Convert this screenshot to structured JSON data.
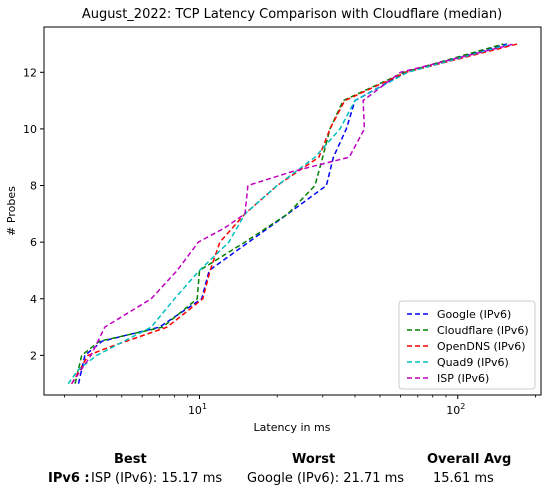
{
  "chart_data": {
    "type": "line",
    "title": "August_2022: TCP Latency Comparison with Cloudflare (median)",
    "xlabel": "Latency in ms",
    "ylabel": "# Probes",
    "xscale": "log",
    "xlim": [
      2.5,
      210
    ],
    "ylim": [
      0.6,
      13.6
    ],
    "xticks": [
      {
        "value": 10,
        "label": "10^1"
      },
      {
        "value": 100,
        "label": "10^2"
      }
    ],
    "yticks": [
      2,
      4,
      6,
      8,
      10,
      12
    ],
    "grid": false,
    "legend_position": "lower-right",
    "series": [
      {
        "name": "Google (IPv6)",
        "color": "#0000ff",
        "x": [
          3.4,
          3.6,
          4.2,
          7.0,
          10.2,
          10.9,
          15.5,
          22.0,
          31.0,
          33.0,
          37.0,
          40.0,
          63.0,
          155.0
        ],
        "y": [
          1,
          2,
          2.5,
          3,
          4,
          5,
          6,
          7,
          8,
          9,
          10,
          11,
          12,
          13
        ]
      },
      {
        "name": "Cloudflare (IPv6)",
        "color": "#008000",
        "x": [
          3.3,
          3.5,
          4.1,
          7.2,
          9.8,
          10.0,
          15.0,
          22.0,
          28.0,
          30.0,
          32.0,
          36.0,
          62.0,
          150.0
        ],
        "y": [
          1,
          2,
          2.5,
          3,
          4,
          5,
          6,
          7,
          8,
          9,
          10,
          11,
          12,
          13
        ]
      },
      {
        "name": "OpenDNS (IPv6)",
        "color": "#ff0000",
        "x": [
          3.2,
          3.7,
          4.5,
          7.5,
          10.3,
          11.0,
          12.0,
          15.0,
          20.0,
          29.0,
          32.0,
          36.5,
          63.0,
          170.0
        ],
        "y": [
          1,
          2,
          2.3,
          3,
          4,
          5,
          6,
          7,
          8,
          9,
          10,
          11,
          12,
          13
        ]
      },
      {
        "name": "Quad9 (IPv6)",
        "color": "#00bfbf",
        "x": [
          3.1,
          3.4,
          4.0,
          6.5,
          8.0,
          10.0,
          13.0,
          15.0,
          20.0,
          28.0,
          35.0,
          40.0,
          64.0,
          160.0
        ],
        "y": [
          1,
          1.5,
          2,
          3,
          4,
          5,
          6,
          7,
          8,
          9,
          10,
          11,
          12,
          13
        ]
      },
      {
        "name": "ISP (IPv6)",
        "color": "#bf00bf",
        "x": [
          3.2,
          3.8,
          4.3,
          6.5,
          8.2,
          9.9,
          12.5,
          15.0,
          15.4,
          23.0,
          38.0,
          43.5,
          43.0,
          60.0,
          165.0
        ],
        "y": [
          1,
          2,
          3,
          4,
          5,
          6,
          6.5,
          7,
          8,
          8.5,
          9,
          10,
          11,
          12,
          13
        ]
      }
    ]
  },
  "summary": {
    "headers": {
      "best": "Best",
      "worst": "Worst",
      "avg": "Overall Avg"
    },
    "row_label": "IPv6 :",
    "best": "ISP (IPv6): 15.17 ms",
    "worst": "Google (IPv6): 21.71 ms",
    "avg": "15.61 ms"
  }
}
